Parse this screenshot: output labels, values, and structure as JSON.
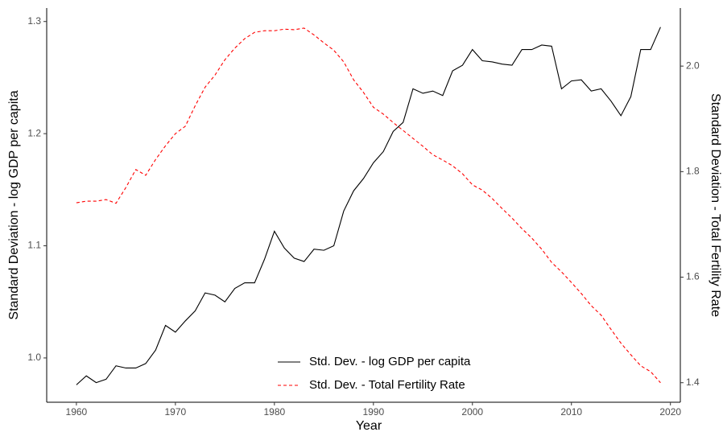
{
  "chart_data": {
    "type": "line",
    "x_label": "Year",
    "y_label": "Standard Deviation - log GDP per capita",
    "y2_label": "Standard Deviation - Total Fertility Rate",
    "x": [
      1960,
      1961,
      1962,
      1963,
      1964,
      1965,
      1966,
      1967,
      1968,
      1969,
      1970,
      1971,
      1972,
      1973,
      1974,
      1975,
      1976,
      1977,
      1978,
      1979,
      1980,
      1981,
      1982,
      1983,
      1984,
      1985,
      1986,
      1987,
      1988,
      1989,
      1990,
      1991,
      1992,
      1993,
      1994,
      1995,
      1996,
      1997,
      1998,
      1999,
      2000,
      2001,
      2002,
      2003,
      2004,
      2005,
      2006,
      2007,
      2008,
      2009,
      2010,
      2011,
      2012,
      2013,
      2014,
      2015,
      2016,
      2017,
      2018,
      2019
    ],
    "series": [
      {
        "name": "Std. Dev. - log GDP per capita",
        "color": "#000000",
        "linestyle": "solid",
        "values": [
          0.976,
          0.984,
          0.978,
          0.981,
          0.993,
          0.991,
          0.991,
          0.995,
          1.007,
          1.029,
          1.023,
          1.033,
          1.042,
          1.058,
          1.056,
          1.05,
          1.062,
          1.067,
          1.067,
          1.088,
          1.113,
          1.098,
          1.089,
          1.086,
          1.097,
          1.096,
          1.1,
          1.131,
          1.149,
          1.16,
          1.174,
          1.184,
          1.202,
          1.21,
          1.24,
          1.236,
          1.238,
          1.234,
          1.256,
          1.261,
          1.275,
          1.265,
          1.264,
          1.262,
          1.261,
          1.275,
          1.275,
          1.279,
          1.278,
          1.24,
          1.247,
          1.248,
          1.238,
          1.24,
          1.229,
          1.216,
          1.233,
          1.275,
          1.275,
          1.295
        ]
      },
      {
        "name": "Std. Dev. - Total Fertility Rate",
        "color": "#ff0000",
        "linestyle": "dashed",
        "axis": "y2",
        "values": [
          1.741,
          1.744,
          1.744,
          1.747,
          1.74,
          1.77,
          1.804,
          1.793,
          1.823,
          1.849,
          1.872,
          1.886,
          1.925,
          1.96,
          1.983,
          2.012,
          2.034,
          2.052,
          2.064,
          2.067,
          2.067,
          2.07,
          2.069,
          2.072,
          2.059,
          2.044,
          2.03,
          2.008,
          1.974,
          1.95,
          1.922,
          1.909,
          1.893,
          1.878,
          1.863,
          1.848,
          1.832,
          1.822,
          1.811,
          1.796,
          1.775,
          1.765,
          1.749,
          1.73,
          1.712,
          1.692,
          1.674,
          1.653,
          1.628,
          1.61,
          1.59,
          1.569,
          1.546,
          1.528,
          1.501,
          1.475,
          1.453,
          1.432,
          1.421,
          1.4
        ]
      }
    ],
    "xlim": [
      1957,
      2021
    ],
    "xticks": [
      1960,
      1970,
      1980,
      1990,
      2000,
      2010,
      2020
    ],
    "ylim": [
      0.9605,
      1.312
    ],
    "yticks": [
      {
        "value": 1,
        "label": "1.0"
      },
      1.1,
      1.2,
      1.3
    ],
    "y2lim": [
      1.363,
      2.11
    ],
    "y2ticks": [
      1.4,
      1.6,
      1.8,
      {
        "value": 2,
        "label": "2.0"
      }
    ],
    "grid": false,
    "legend": "bottom"
  }
}
